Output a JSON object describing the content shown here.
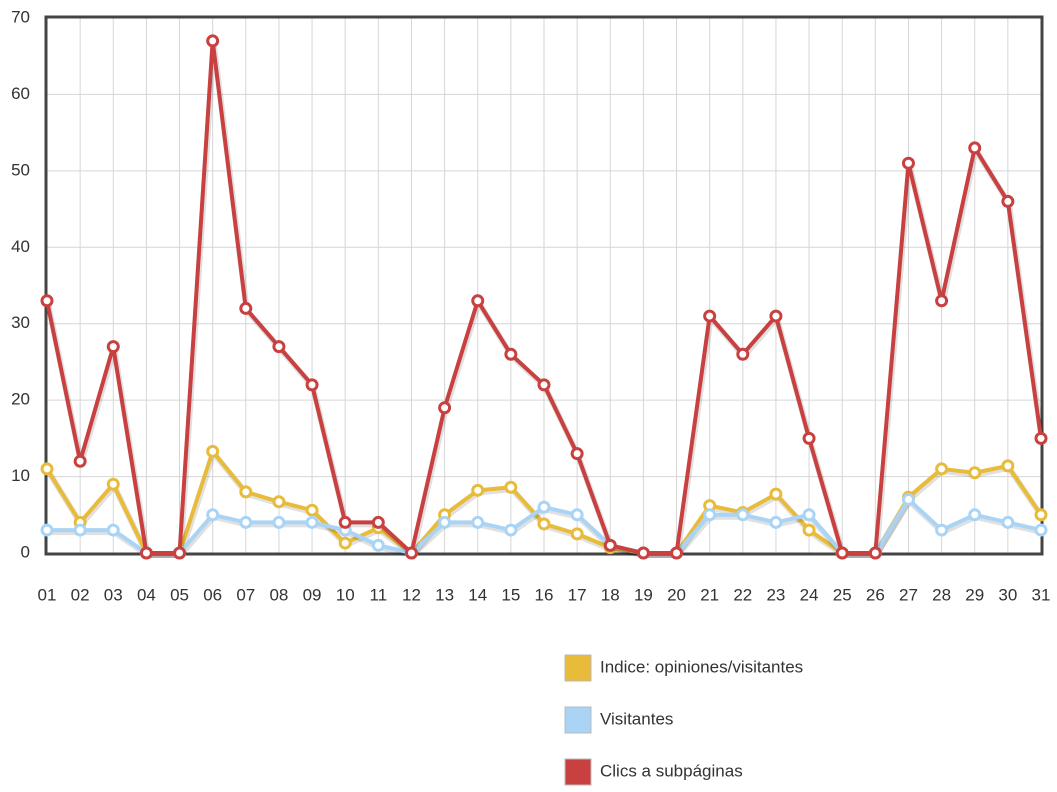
{
  "chart_data": {
    "type": "line",
    "categories": [
      "01",
      "02",
      "03",
      "04",
      "05",
      "06",
      "07",
      "08",
      "09",
      "10",
      "11",
      "12",
      "13",
      "14",
      "15",
      "16",
      "17",
      "18",
      "19",
      "20",
      "21",
      "22",
      "23",
      "24",
      "25",
      "26",
      "27",
      "28",
      "29",
      "30",
      "31"
    ],
    "series": [
      {
        "name": "Indice: opiniones/visitantes",
        "color": "#e8bb3a",
        "values": [
          11,
          4,
          9,
          0,
          0,
          13.3,
          8,
          6.7,
          5.6,
          1.3,
          3.3,
          0,
          5,
          8.2,
          8.6,
          3.8,
          2.5,
          0.7,
          0,
          0,
          6.2,
          5.3,
          7.7,
          3,
          0,
          0,
          7.3,
          11,
          10.5,
          11.4,
          5
        ]
      },
      {
        "name": "Visitantes",
        "color": "#a9d4f5",
        "values": [
          3,
          3,
          3,
          0,
          0,
          5,
          4,
          4,
          4,
          3,
          1,
          0,
          4,
          4,
          3,
          6,
          5,
          1,
          0,
          0,
          5,
          5,
          4,
          5,
          0,
          0,
          7,
          3,
          5,
          4,
          3
        ]
      },
      {
        "name": "Clics a subpáginas",
        "color": "#c8403f",
        "values": [
          33,
          12,
          27,
          0,
          0,
          67,
          32,
          27,
          22,
          4,
          4,
          0,
          19,
          33,
          26,
          22,
          13,
          1,
          0,
          0,
          31,
          26,
          31,
          15,
          0,
          0,
          51,
          33,
          53,
          46,
          15
        ]
      }
    ],
    "ylim": [
      0,
      70
    ],
    "yticks": [
      0,
      10,
      20,
      30,
      40,
      50,
      60,
      70
    ],
    "grid": true
  }
}
